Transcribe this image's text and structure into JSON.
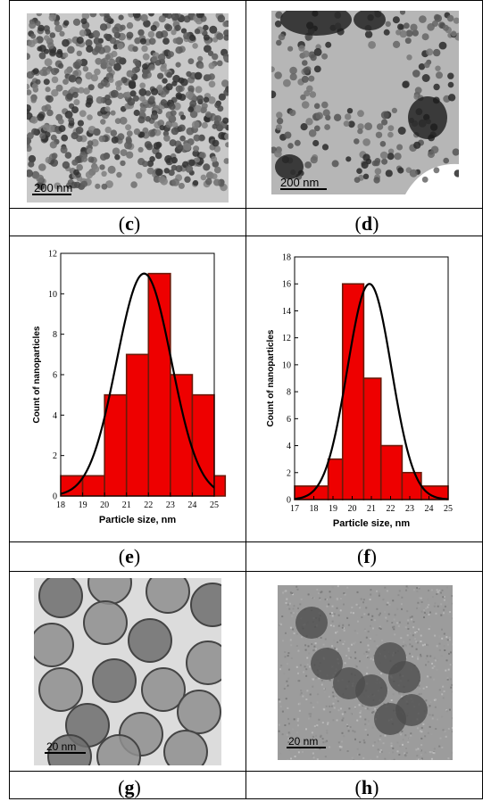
{
  "panels": {
    "c": {
      "caption": "c",
      "scale_label": "200 nm"
    },
    "d": {
      "caption": "d",
      "scale_label": "200 nm"
    },
    "e": {
      "caption": "e"
    },
    "f": {
      "caption": "f"
    },
    "g": {
      "caption": "g",
      "scale_label": "20 nm"
    },
    "h": {
      "caption": "h",
      "scale_label": "20 nm"
    }
  },
  "chart_data": [
    {
      "type": "bar",
      "panel": "e",
      "xlabel": "Particle size, nm",
      "ylabel": "Count of nanoparticles",
      "xlim": [
        18,
        25
      ],
      "ylim": [
        0,
        12
      ],
      "xticks": [
        18,
        19,
        20,
        21,
        22,
        23,
        24,
        25
      ],
      "yticks": [
        0,
        2,
        4,
        6,
        8,
        10,
        12
      ],
      "bins": [
        {
          "from": 18,
          "to": 19,
          "count": 1
        },
        {
          "from": 19,
          "to": 20,
          "count": 1
        },
        {
          "from": 20,
          "to": 21,
          "count": 5
        },
        {
          "from": 21,
          "to": 22,
          "count": 7
        },
        {
          "from": 22,
          "to": 23,
          "count": 11
        },
        {
          "from": 23,
          "to": 24,
          "count": 6
        },
        {
          "from": 24,
          "to": 25,
          "count": 5
        },
        {
          "from": 25,
          "to": 25.5,
          "count": 1
        }
      ],
      "fit": {
        "type": "gaussian",
        "mean": 21.8,
        "sigma": 1.25,
        "peak": 11
      },
      "bar_color": "#ee0000",
      "bar_edge_color": "#6b1a0a"
    },
    {
      "type": "bar",
      "panel": "f",
      "xlabel": "Particle size, nm",
      "ylabel": "Count of nanoparticles",
      "xlim": [
        17,
        25
      ],
      "ylim": [
        0,
        18
      ],
      "xticks": [
        17,
        18,
        19,
        20,
        21,
        22,
        23,
        24,
        25
      ],
      "yticks": [
        0,
        2,
        4,
        6,
        8,
        10,
        12,
        14,
        16,
        18
      ],
      "bins": [
        {
          "from": 17,
          "to": 18.75,
          "count": 1
        },
        {
          "from": 18.75,
          "to": 19.5,
          "count": 3
        },
        {
          "from": 19.5,
          "to": 20.6,
          "count": 16
        },
        {
          "from": 20.6,
          "to": 21.5,
          "count": 9
        },
        {
          "from": 21.5,
          "to": 22.6,
          "count": 4
        },
        {
          "from": 22.6,
          "to": 23.6,
          "count": 2
        },
        {
          "from": 23.6,
          "to": 25,
          "count": 1
        }
      ],
      "fit": {
        "type": "gaussian",
        "mean": 20.9,
        "sigma": 1.15,
        "peak": 16
      },
      "bar_color": "#ee0000",
      "bar_edge_color": "#6b1a0a"
    }
  ]
}
